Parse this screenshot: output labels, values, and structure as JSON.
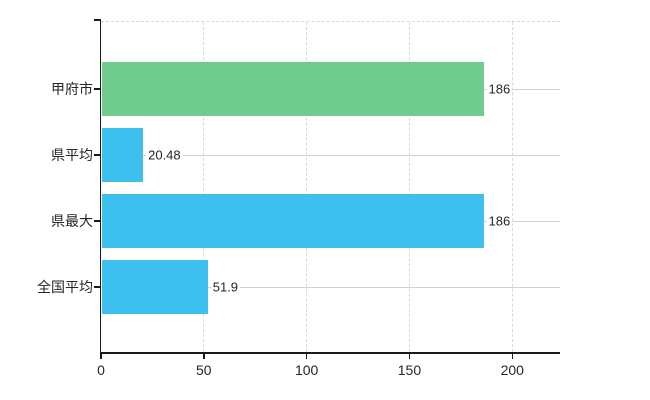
{
  "chart_data": {
    "type": "bar",
    "orientation": "horizontal",
    "title": "",
    "xlabel": "",
    "ylabel": "",
    "categories": [
      "甲府市",
      "県平均",
      "県最大",
      "全国平均"
    ],
    "values": [
      186,
      20.48,
      186,
      51.9
    ],
    "value_labels": [
      "186",
      "20.48",
      "186",
      "51.9"
    ],
    "series": [
      {
        "name": "甲府市",
        "value": 186,
        "color": "#6ecd8c"
      },
      {
        "name": "県平均",
        "value": 20.48,
        "color": "#3ec0ef"
      },
      {
        "name": "県最大",
        "value": 186,
        "color": "#3ec0ef"
      },
      {
        "name": "全国平均",
        "value": 51.9,
        "color": "#3ec0ef"
      }
    ],
    "xlim": [
      0,
      223.2
    ],
    "x_ticks": [
      0,
      50,
      100,
      150,
      200
    ],
    "x_tick_labels": [
      "0",
      "50",
      "100",
      "150",
      "200"
    ],
    "legend": "none",
    "grid": {
      "vertical": "dashed",
      "horizontal": "solid-at-row-centers",
      "top_border": "dashed"
    },
    "colors": {
      "bar_green": "#6ecd8c",
      "bar_blue": "#3ec0ef",
      "grid_line": "#d2d2d2",
      "dashed_line": "#d9d9d9",
      "axis_line": "#1a1a1a",
      "text": "#262626",
      "background": "#ffffff"
    }
  }
}
